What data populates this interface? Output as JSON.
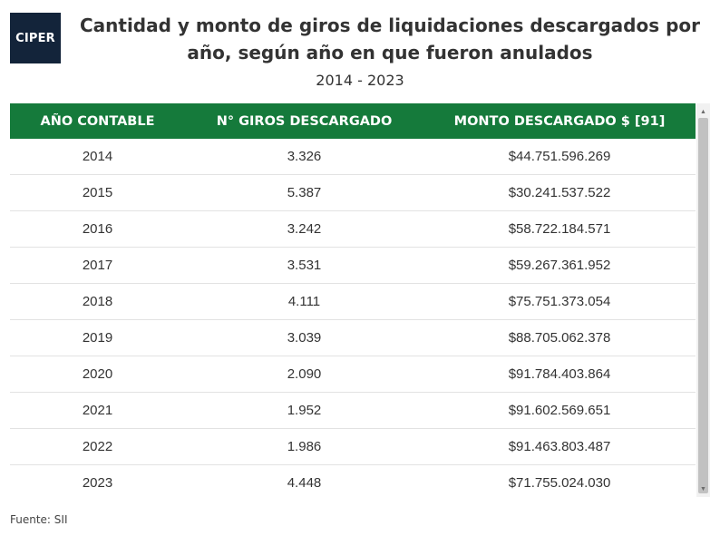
{
  "logo": {
    "text": "CIPER"
  },
  "header": {
    "title": "Cantidad y monto de giros de liquidaciones descargados por año, según año en que fueron anulados",
    "subtitle": "2014 - 2023"
  },
  "chart_data": {
    "type": "table",
    "title": "Cantidad y monto de giros de liquidaciones descargados por año, según año en que fueron anulados",
    "subtitle": "2014 - 2023",
    "columns": [
      "AÑO CONTABLE",
      "N° GIROS DESCARGADO",
      "MONTO DESCARGADO $ [91]"
    ],
    "rows": [
      [
        "2014",
        "3.326",
        "$44.751.596.269"
      ],
      [
        "2015",
        "5.387",
        "$30.241.537.522"
      ],
      [
        "2016",
        "3.242",
        "$58.722.184.571"
      ],
      [
        "2017",
        "3.531",
        "$59.267.361.952"
      ],
      [
        "2018",
        "4.111",
        "$75.751.373.054"
      ],
      [
        "2019",
        "3.039",
        "$88.705.062.378"
      ],
      [
        "2020",
        "2.090",
        "$91.784.403.864"
      ],
      [
        "2021",
        "1.952",
        "$91.602.569.651"
      ],
      [
        "2022",
        "1.986",
        "$91.463.803.487"
      ],
      [
        "2023",
        "4.448",
        "$71.755.024.030"
      ]
    ],
    "header_color": "#157a3b"
  },
  "footer": {
    "source": "Fuente: SII"
  }
}
